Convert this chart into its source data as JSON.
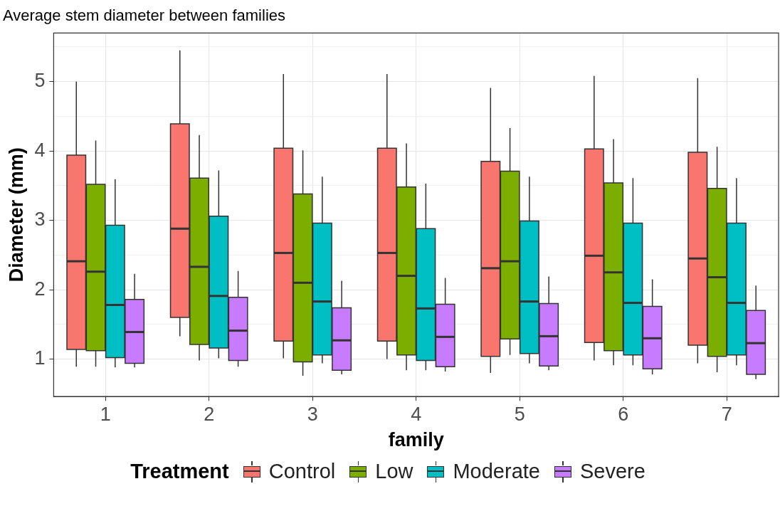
{
  "chart_data": {
    "type": "box",
    "title": "Average stem diameter between families",
    "xlabel": "family",
    "ylabel": "Diameter (mm)",
    "legend_title": "Treatment",
    "legend": "bottom",
    "grid": true,
    "categories": [
      "1",
      "2",
      "3",
      "4",
      "5",
      "6",
      "7"
    ],
    "ylim": [
      0.46,
      5.7
    ],
    "yticks": [
      1,
      {
        "value": 1.5,
        "label": null
      },
      2,
      {
        "value": 2.5,
        "label": null
      },
      3,
      {
        "value": 3.5,
        "label": null
      },
      4,
      {
        "value": 4.5,
        "label": null
      },
      5,
      {
        "value": 5.5,
        "label": null
      }
    ],
    "series": [
      {
        "name": "Control",
        "color": "#f8766d",
        "boxes": [
          {
            "low": 0.89,
            "q1": 1.14,
            "median": 2.41,
            "q3": 3.94,
            "high": 5.0
          },
          {
            "low": 1.33,
            "q1": 1.6,
            "median": 2.88,
            "q3": 4.39,
            "high": 5.45
          },
          {
            "low": 1.01,
            "q1": 1.26,
            "median": 2.53,
            "q3": 4.04,
            "high": 5.11
          },
          {
            "low": 1.0,
            "q1": 1.26,
            "median": 2.53,
            "q3": 4.04,
            "high": 5.11
          },
          {
            "low": 0.8,
            "q1": 1.04,
            "median": 2.31,
            "q3": 3.85,
            "high": 4.91
          },
          {
            "low": 0.98,
            "q1": 1.24,
            "median": 2.49,
            "q3": 4.03,
            "high": 5.08
          },
          {
            "low": 0.94,
            "q1": 1.2,
            "median": 2.45,
            "q3": 3.98,
            "high": 5.05
          }
        ]
      },
      {
        "name": "Low",
        "color": "#7cae00",
        "boxes": [
          {
            "low": 0.89,
            "q1": 1.12,
            "median": 2.26,
            "q3": 3.52,
            "high": 4.15
          },
          {
            "low": 0.98,
            "q1": 1.21,
            "median": 2.33,
            "q3": 3.61,
            "high": 4.23
          },
          {
            "low": 0.76,
            "q1": 0.96,
            "median": 2.1,
            "q3": 3.38,
            "high": 4.01
          },
          {
            "low": 0.84,
            "q1": 1.06,
            "median": 2.2,
            "q3": 3.48,
            "high": 4.11
          },
          {
            "low": 1.06,
            "q1": 1.29,
            "median": 2.41,
            "q3": 3.71,
            "high": 4.33
          },
          {
            "low": 0.91,
            "q1": 1.12,
            "median": 2.25,
            "q3": 3.54,
            "high": 4.17
          },
          {
            "low": 0.81,
            "q1": 1.04,
            "median": 2.18,
            "q3": 3.46,
            "high": 4.06
          }
        ]
      },
      {
        "name": "Moderate",
        "color": "#00bfc4",
        "boxes": [
          {
            "low": 0.88,
            "q1": 1.02,
            "median": 1.78,
            "q3": 2.93,
            "high": 3.59
          },
          {
            "low": 1.01,
            "q1": 1.16,
            "median": 1.91,
            "q3": 3.06,
            "high": 3.72
          },
          {
            "low": 0.94,
            "q1": 1.06,
            "median": 1.83,
            "q3": 2.96,
            "high": 3.63
          },
          {
            "low": 0.84,
            "q1": 0.98,
            "median": 1.73,
            "q3": 2.88,
            "high": 3.53
          },
          {
            "low": 0.94,
            "q1": 1.08,
            "median": 1.83,
            "q3": 2.99,
            "high": 3.63
          },
          {
            "low": 0.91,
            "q1": 1.06,
            "median": 1.81,
            "q3": 2.96,
            "high": 3.61
          },
          {
            "low": 0.91,
            "q1": 1.06,
            "median": 1.81,
            "q3": 2.96,
            "high": 3.61
          }
        ]
      },
      {
        "name": "Severe",
        "color": "#c77cff",
        "boxes": [
          {
            "low": 0.88,
            "q1": 0.94,
            "median": 1.39,
            "q3": 1.86,
            "high": 2.23
          },
          {
            "low": 0.89,
            "q1": 0.98,
            "median": 1.41,
            "q3": 1.89,
            "high": 2.27
          },
          {
            "low": 0.78,
            "q1": 0.84,
            "median": 1.27,
            "q3": 1.74,
            "high": 2.13
          },
          {
            "low": 0.82,
            "q1": 0.89,
            "median": 1.32,
            "q3": 1.79,
            "high": 2.17
          },
          {
            "low": 0.84,
            "q1": 0.9,
            "median": 1.33,
            "q3": 1.8,
            "high": 2.19
          },
          {
            "low": 0.78,
            "q1": 0.86,
            "median": 1.3,
            "q3": 1.76,
            "high": 2.15
          },
          {
            "low": 0.71,
            "q1": 0.78,
            "median": 1.23,
            "q3": 1.7,
            "high": 2.06
          }
        ]
      }
    ]
  }
}
